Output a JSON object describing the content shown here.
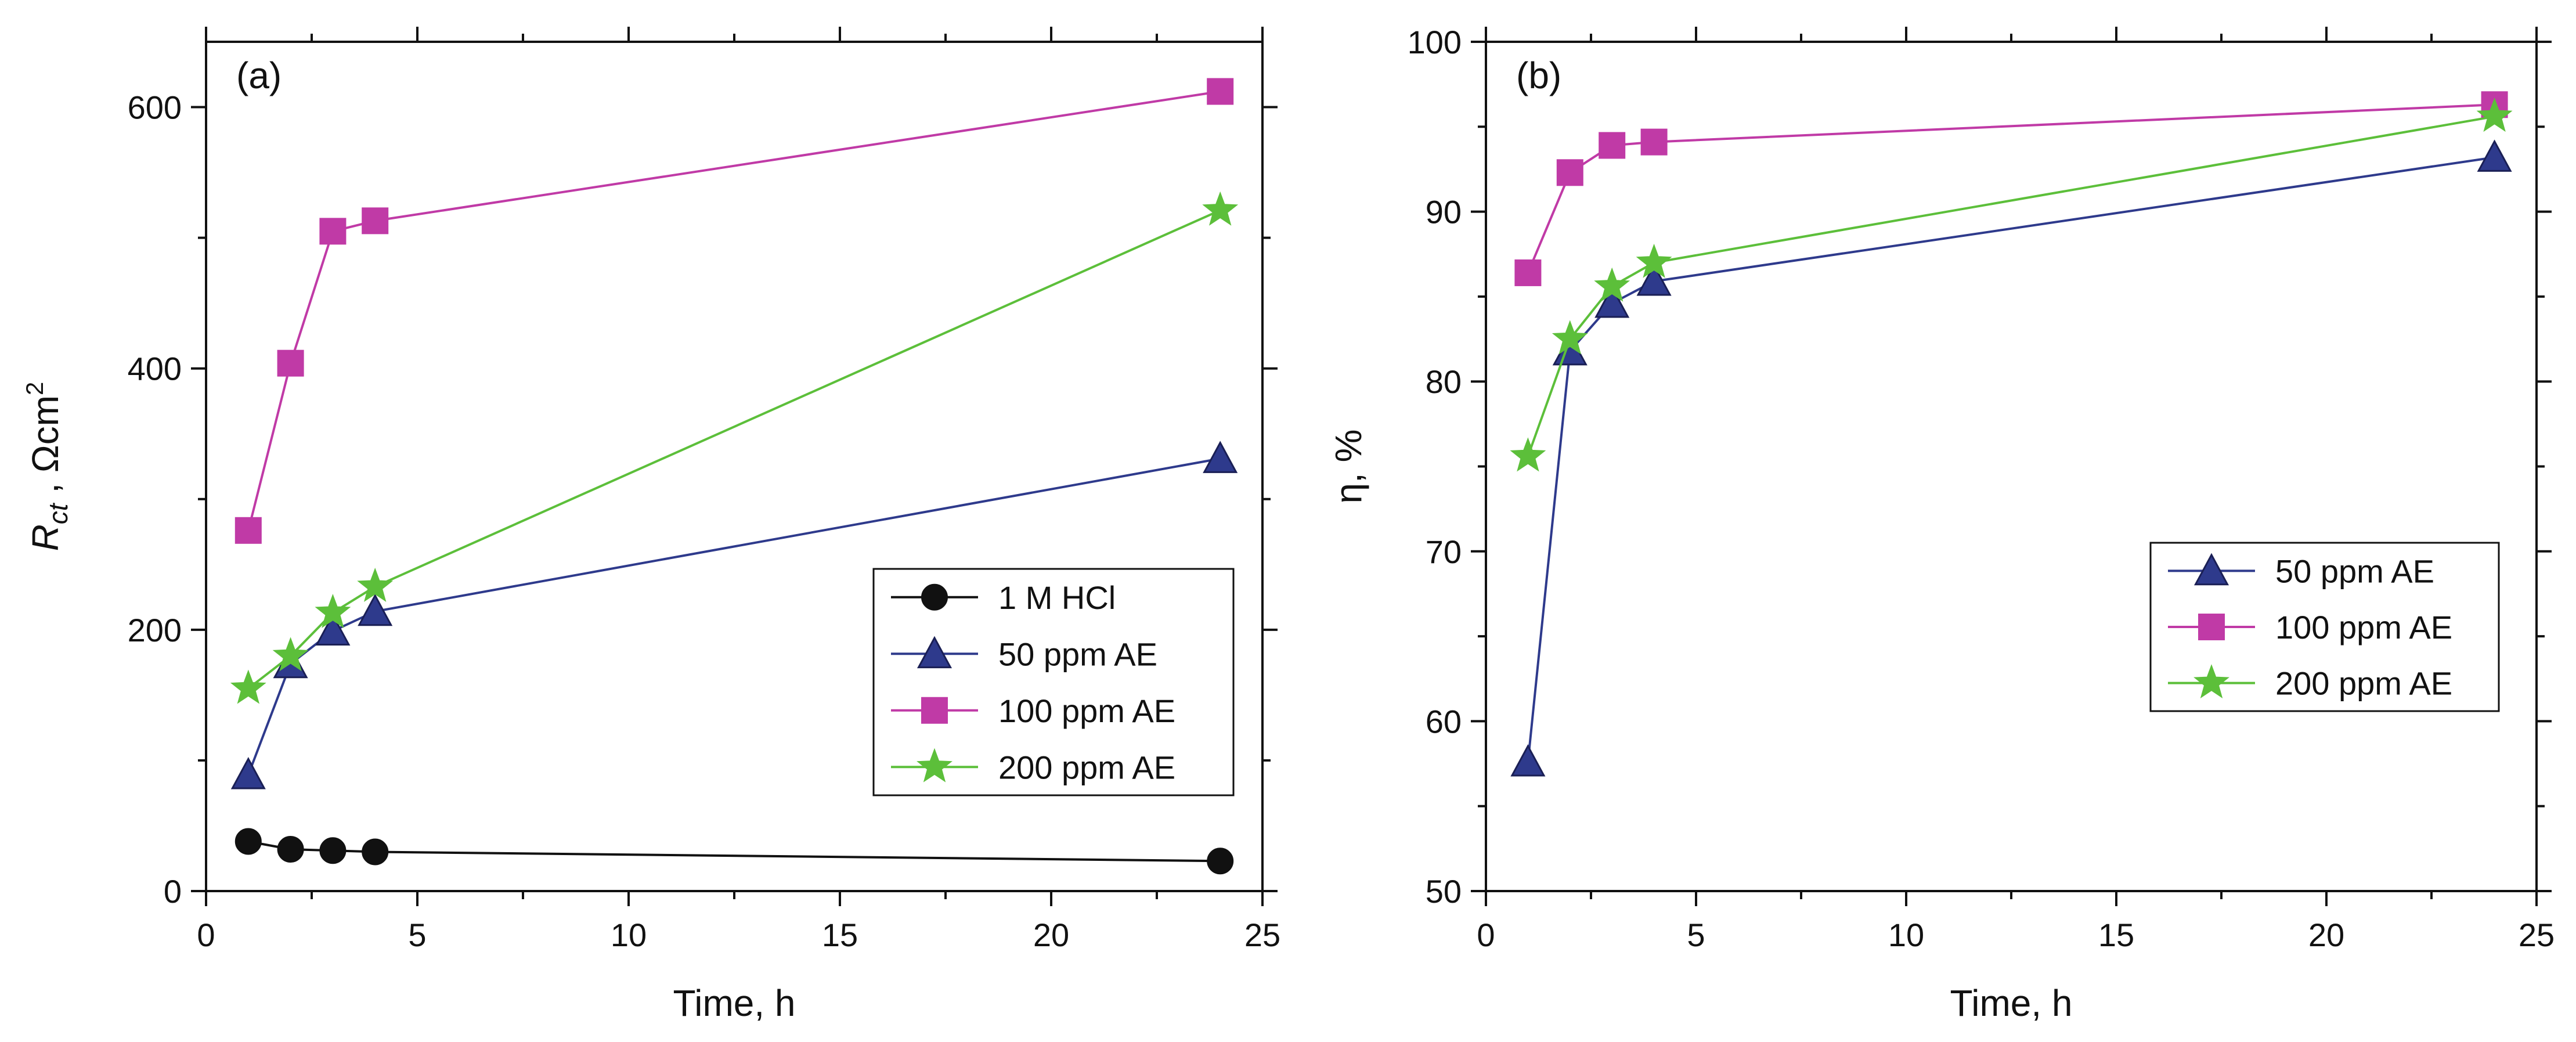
{
  "chart_data": [
    {
      "type": "line",
      "panel_label": "(a)",
      "xlabel": "Time, h",
      "ylabel": {
        "main": "R",
        "sub": "ct",
        "sep": " , ",
        "unit": "Ωcm",
        "sup": "2"
      },
      "xlim": [
        0,
        25
      ],
      "ylim": [
        0,
        650
      ],
      "xticks": [
        0,
        5,
        10,
        15,
        20,
        25
      ],
      "yticks": [
        0,
        200,
        400,
        600
      ],
      "grid": false,
      "legend_position": "center-right",
      "series": [
        {
          "name": "1 M HCl",
          "marker": "circle",
          "color": "#111111",
          "x": [
            1,
            2,
            3,
            4,
            24
          ],
          "y": [
            38,
            32,
            31,
            30,
            23
          ]
        },
        {
          "name": "50 ppm AE",
          "marker": "triangle",
          "color": "#2e3a8c",
          "x": [
            1,
            2,
            3,
            4,
            24
          ],
          "y": [
            89,
            174,
            199,
            214,
            331
          ]
        },
        {
          "name": "100 ppm AE",
          "marker": "square",
          "color": "#c03aa6",
          "x": [
            1,
            2,
            3,
            4,
            24
          ],
          "y": [
            276,
            404,
            505,
            513,
            612
          ]
        },
        {
          "name": "200 ppm AE",
          "marker": "star",
          "color": "#5cbf3a",
          "x": [
            1,
            2,
            3,
            4,
            24
          ],
          "y": [
            155,
            180,
            213,
            233,
            521
          ]
        }
      ]
    },
    {
      "type": "line",
      "panel_label": "(b)",
      "xlabel": "Time, h",
      "ylabel": {
        "main": "η, %"
      },
      "xlim": [
        0,
        25
      ],
      "ylim": [
        50,
        100
      ],
      "xticks": [
        0,
        5,
        10,
        15,
        20,
        25
      ],
      "yticks": [
        50,
        60,
        70,
        80,
        90,
        100
      ],
      "grid": false,
      "legend_position": "center-right",
      "series": [
        {
          "name": "50 ppm AE",
          "marker": "triangle",
          "color": "#2e3a8c",
          "x": [
            1,
            2,
            3,
            4,
            24
          ],
          "y": [
            57.6,
            81.8,
            84.6,
            85.9,
            93.2
          ]
        },
        {
          "name": "100 ppm AE",
          "marker": "square",
          "color": "#c03aa6",
          "x": [
            1,
            2,
            3,
            4,
            24
          ],
          "y": [
            86.4,
            92.3,
            93.9,
            94.1,
            96.3
          ]
        },
        {
          "name": "200 ppm AE",
          "marker": "star",
          "color": "#5cbf3a",
          "x": [
            1,
            2,
            3,
            4,
            24
          ],
          "y": [
            75.6,
            82.5,
            85.6,
            87.0,
            95.6
          ]
        }
      ]
    }
  ]
}
